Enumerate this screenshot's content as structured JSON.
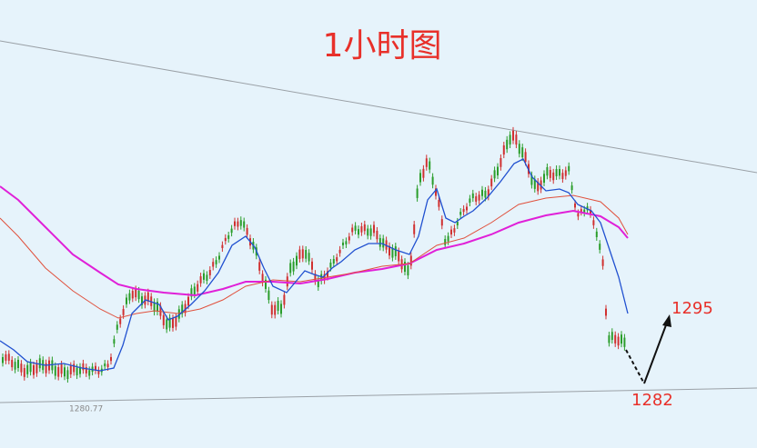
{
  "title": "1小时图",
  "annotations": {
    "target_high": "1295",
    "target_low": "1282",
    "low_mark": "1280.77"
  }
}
